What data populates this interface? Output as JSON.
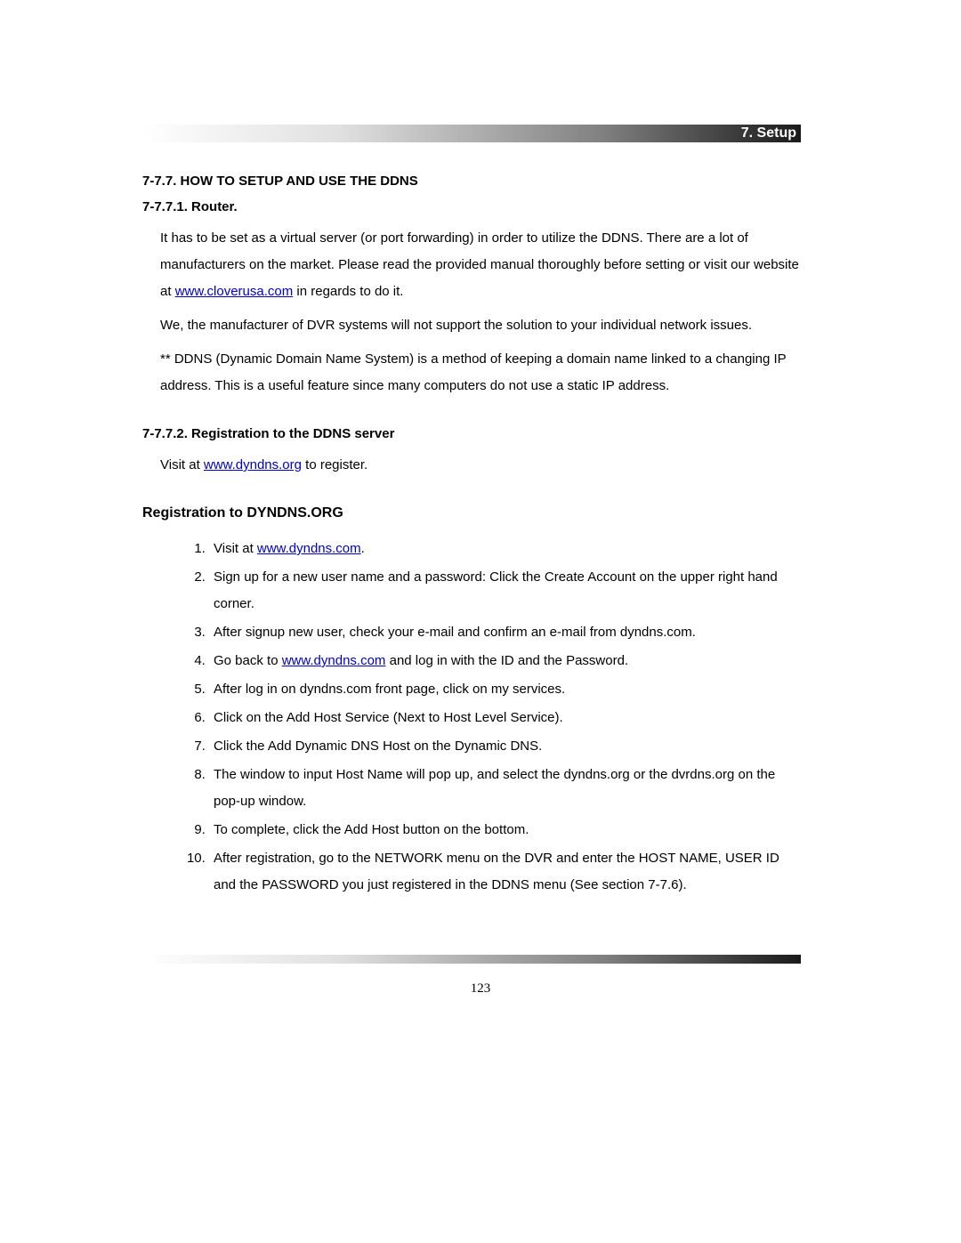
{
  "header": {
    "label": "7. Setup"
  },
  "section": {
    "title": "7-7.7. HOW TO SETUP AND USE THE DDNS",
    "sub1": {
      "title": "7-7.7.1. Router.",
      "para1_pre": "It has to be set as a virtual server (or port forwarding) in order to utilize the DDNS. There are a lot of manufacturers on the market. Please read the provided manual thoroughly before setting or visit our website at ",
      "para1_link": "www.cloverusa.com",
      "para1_post": " in regards to do it.",
      "para2": "We, the manufacturer of DVR systems will not support the solution to your individual network issues.",
      "para3": "** DDNS (Dynamic Domain Name System) is a method of keeping a domain name linked to a changing IP address. This is a useful feature since many computers do not use a static IP address."
    },
    "sub2": {
      "title": "7-7.7.2. Registration to the DDNS server",
      "text_pre": "Visit at ",
      "text_link": "www.dyndns.org",
      "text_post": " to register."
    }
  },
  "registration": {
    "title": "Registration to DYNDNS.ORG",
    "steps": {
      "s1_pre": "Visit at ",
      "s1_link": "www.dyndns.com",
      "s1_post": ".",
      "s2": "Sign up for a new user name and a password: Click the Create Account on the upper right hand corner.",
      "s3": "After signup new user, check your e-mail and confirm an e-mail from dyndns.com.",
      "s4_pre": "Go back to ",
      "s4_link": "www.dyndns.com",
      "s4_post": " and log in with the ID and the Password.",
      "s5": "After log in on dyndns.com front page, click on my services.",
      "s6": "Click on the Add Host Service (Next to Host Level Service).",
      "s7": "Click the Add Dynamic DNS Host on the Dynamic DNS.",
      "s8": "The window to input Host Name will pop up, and select the dyndns.org or the dvrdns.org on the pop-up window.",
      "s9": "To complete, click the Add Host button on the bottom.",
      "s10": "After registration, go to the NETWORK menu on the DVR and enter the HOST NAME, USER ID and the PASSWORD you just registered in the DDNS menu (See section 7-7.6)."
    }
  },
  "page_number": "123",
  "links": {
    "cloverusa": "www.cloverusa.com",
    "dyndns_org": "www.dyndns.org",
    "dyndns_com": "www.dyndns.com"
  },
  "colors": {
    "link": "#0000cc",
    "text": "#000000",
    "background": "#ffffff"
  }
}
